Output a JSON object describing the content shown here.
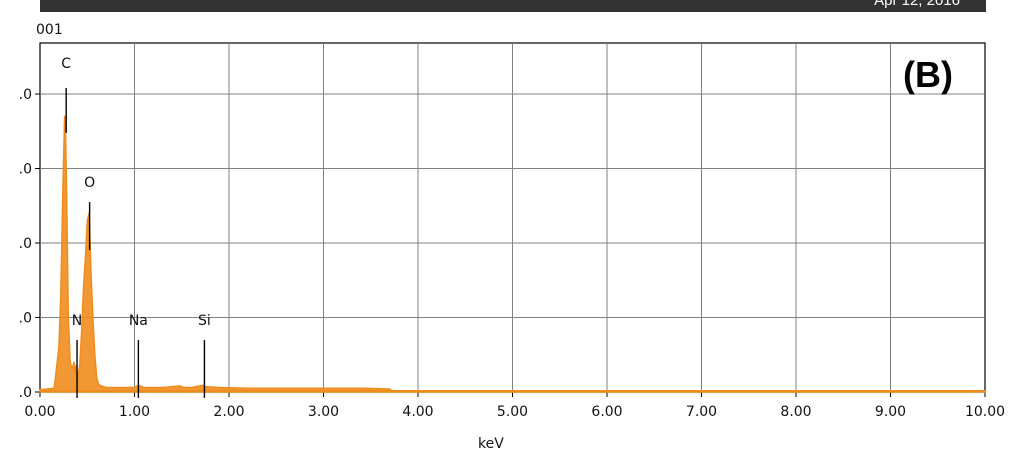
{
  "header": {
    "date": "Apr 12, 2016"
  },
  "spectrum_label": "001",
  "panel_label": "(B)",
  "colors": {
    "spectrum": "#f08c1e",
    "grid": "#808080",
    "axis": "#000000"
  },
  "chart_data": {
    "type": "line",
    "title": "",
    "xlabel": "keV",
    "ylabel": "",
    "xlim": [
      0,
      10
    ],
    "ylim": [
      0,
      6
    ],
    "x_ticks": [
      0,
      1,
      2,
      3,
      4,
      5,
      6,
      7,
      8,
      9,
      10
    ],
    "x_tick_labels": [
      "0.00",
      "1.00",
      "2.00",
      "3.00",
      "4.00",
      "5.00",
      "6.00",
      "7.00",
      "8.00",
      "9.00",
      "10.00"
    ],
    "y_ticks": [
      0,
      1,
      2,
      3,
      4
    ],
    "y_tick_labels": [
      ".0",
      ".0",
      ".0",
      ".0",
      ".0"
    ],
    "grid": true,
    "series": [
      {
        "x": [
          0.0,
          0.15,
          0.2,
          0.22,
          0.24,
          0.26,
          0.27,
          0.28,
          0.3,
          0.32,
          0.34,
          0.36,
          0.37,
          0.38,
          0.4,
          0.42,
          0.44,
          0.46,
          0.48,
          0.5,
          0.52,
          0.53,
          0.54,
          0.56,
          0.58,
          0.6,
          0.62,
          0.65,
          0.7,
          0.8,
          1.0,
          1.04,
          1.1,
          1.3,
          1.48,
          1.52,
          1.6,
          1.72,
          1.76,
          1.9,
          2.2,
          2.6,
          3.0,
          3.4,
          3.7,
          3.72,
          3.8,
          10.0
        ],
        "y": [
          0.03,
          0.05,
          0.6,
          1.3,
          2.6,
          3.7,
          3.5,
          2.8,
          1.0,
          0.4,
          0.3,
          0.4,
          0.25,
          0.35,
          0.2,
          0.35,
          0.8,
          1.4,
          1.8,
          2.3,
          2.4,
          2.0,
          1.6,
          1.0,
          0.5,
          0.2,
          0.1,
          0.08,
          0.06,
          0.06,
          0.06,
          0.09,
          0.06,
          0.06,
          0.08,
          0.06,
          0.06,
          0.09,
          0.07,
          0.06,
          0.05,
          0.05,
          0.05,
          0.05,
          0.04,
          0.02,
          0.01,
          0.01
        ]
      }
    ],
    "annotations": [
      {
        "label": "C",
        "x": 0.277,
        "y": 4.35
      },
      {
        "label": "O",
        "x": 0.525,
        "y": 2.75
      },
      {
        "label": "N",
        "x": 0.392,
        "y": 0.9
      },
      {
        "label": "Na",
        "x": 1.041,
        "y": 0.9
      },
      {
        "label": "Si",
        "x": 1.74,
        "y": 0.9
      }
    ]
  }
}
